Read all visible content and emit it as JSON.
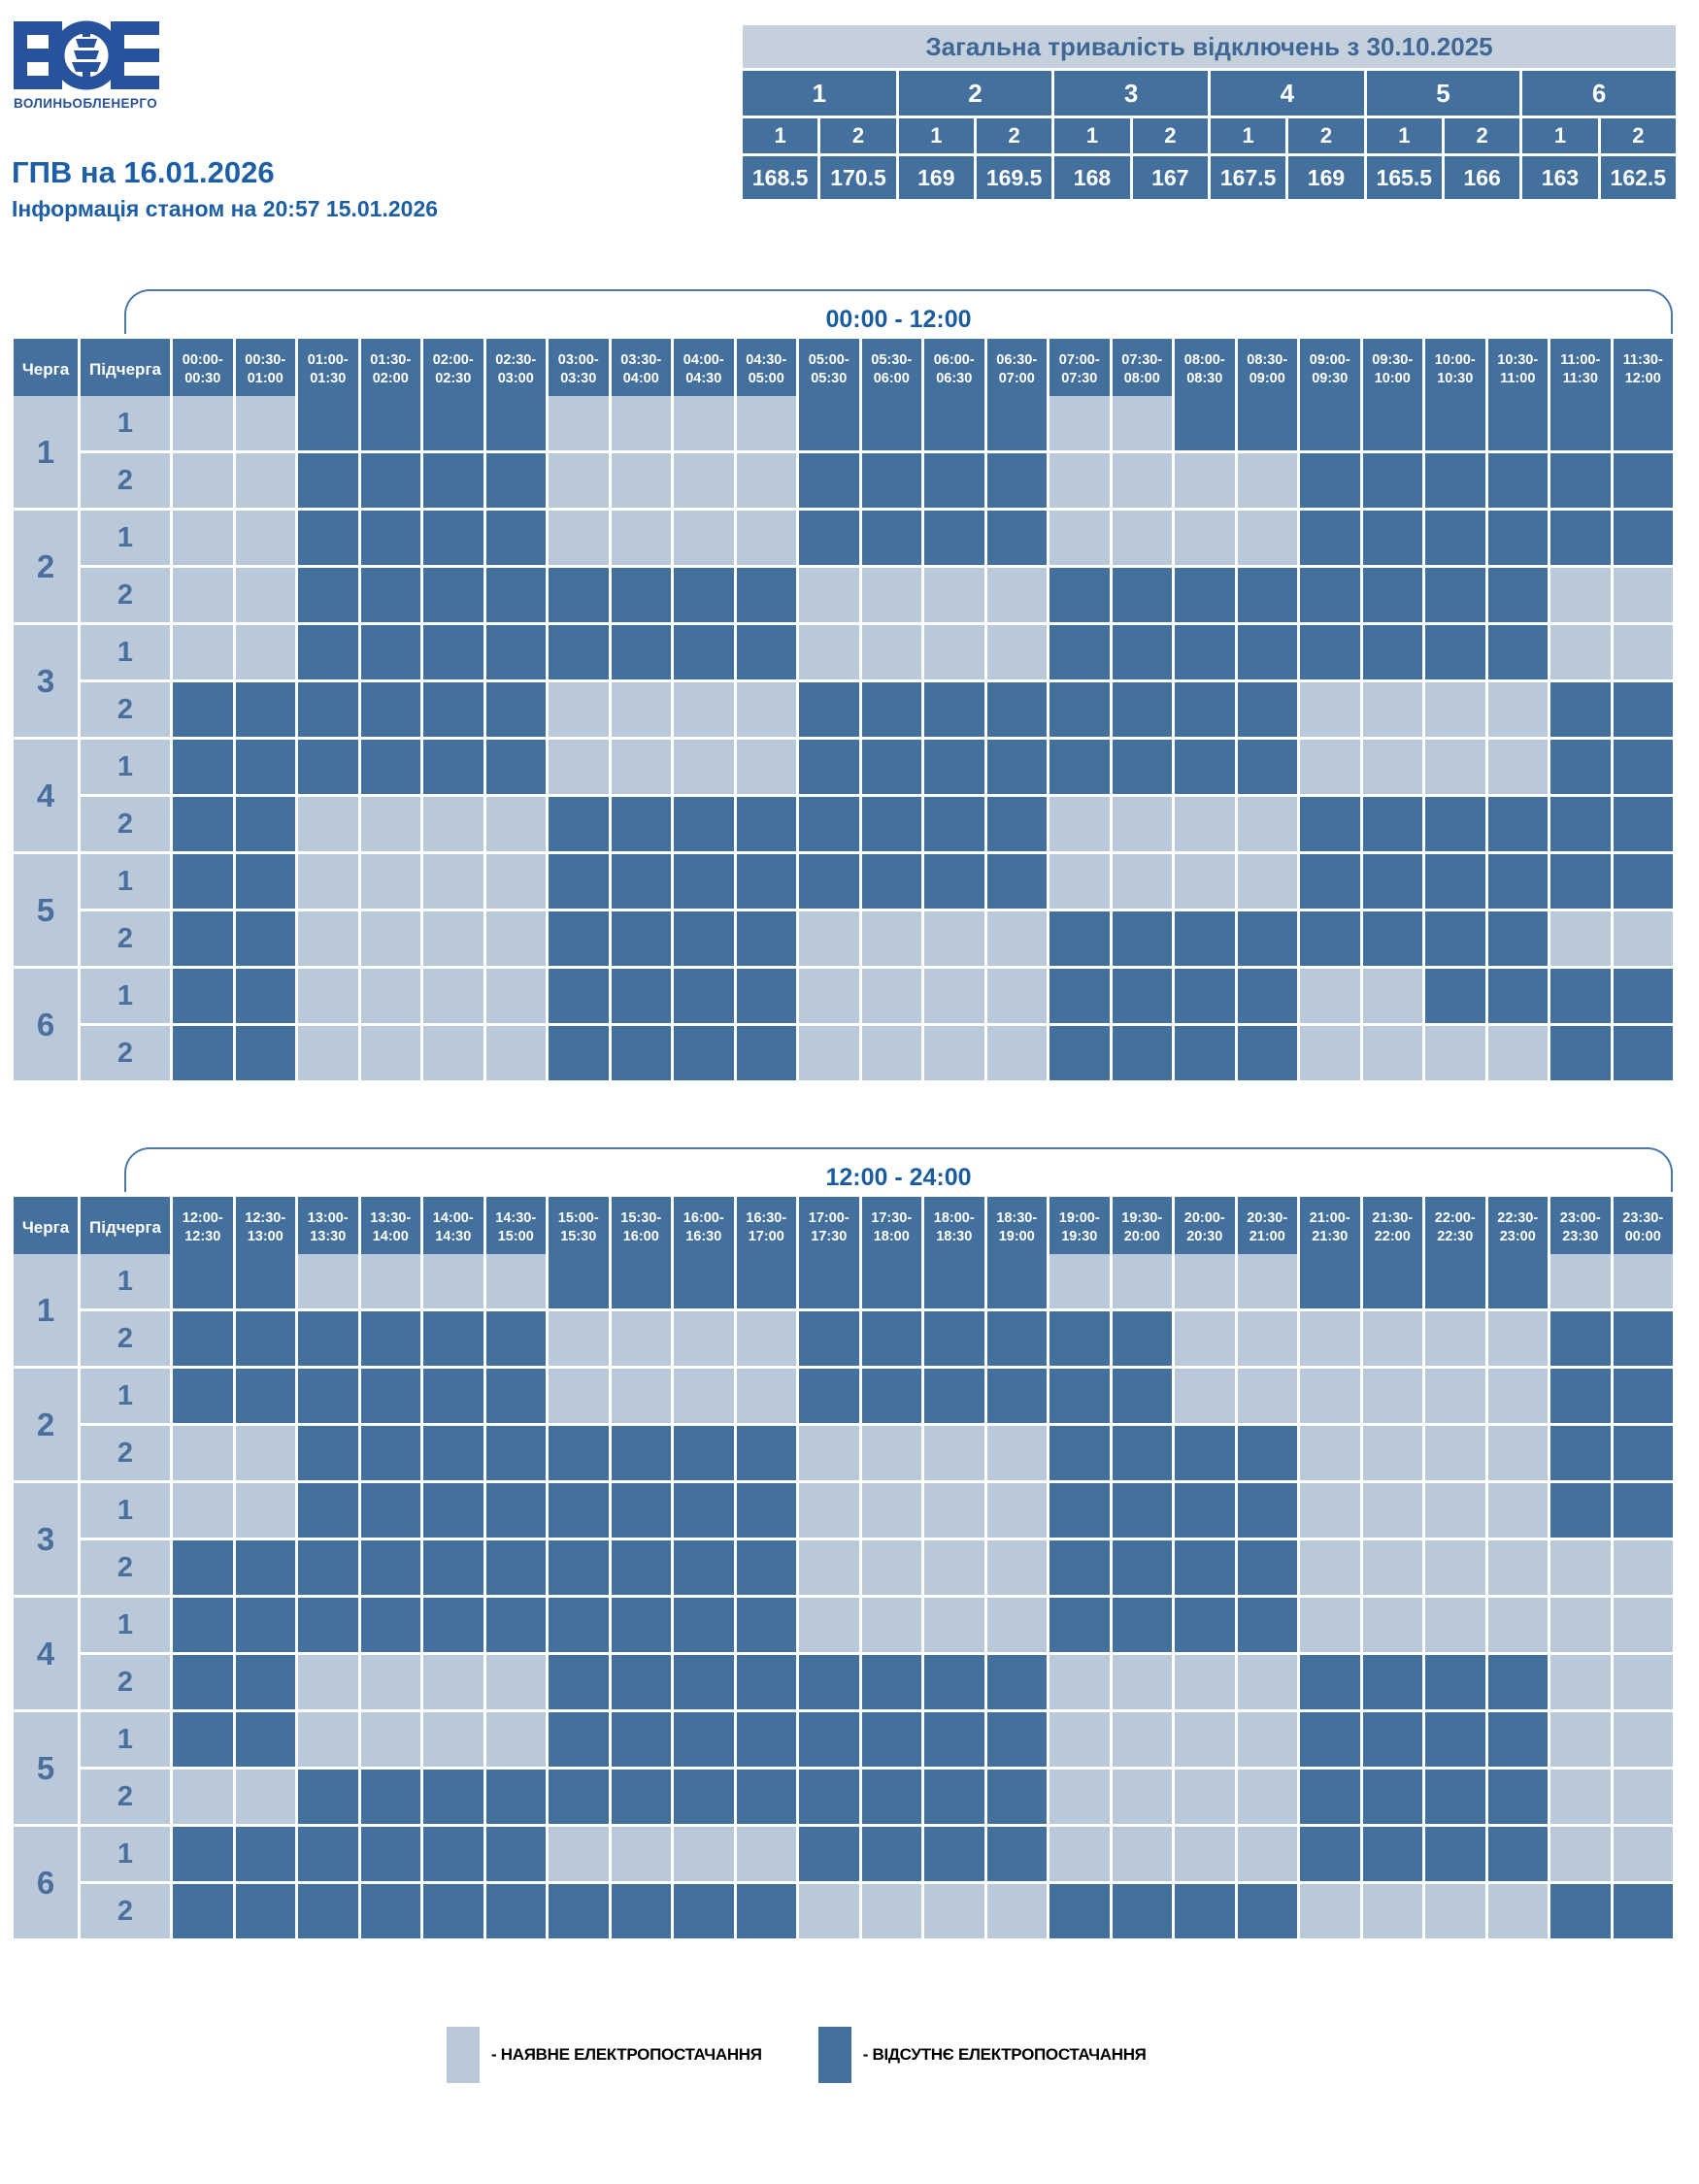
{
  "brand": {
    "company": "ВОЛИНЬОБЛЕНЕРГО",
    "title": "ГПВ на 16.01.2026",
    "subtitle": "Інформація станом на 20:57 15.01.2026"
  },
  "summary": {
    "title": "Загальна тривалість відключень з 30.10.2025",
    "groups": [
      {
        "label": "1",
        "subs": [
          {
            "label": "1",
            "value": "168.5"
          },
          {
            "label": "2",
            "value": "170.5"
          }
        ]
      },
      {
        "label": "2",
        "subs": [
          {
            "label": "1",
            "value": "169"
          },
          {
            "label": "2",
            "value": "169.5"
          }
        ]
      },
      {
        "label": "3",
        "subs": [
          {
            "label": "1",
            "value": "168"
          },
          {
            "label": "2",
            "value": "167"
          }
        ]
      },
      {
        "label": "4",
        "subs": [
          {
            "label": "1",
            "value": "167.5"
          },
          {
            "label": "2",
            "value": "169"
          }
        ]
      },
      {
        "label": "5",
        "subs": [
          {
            "label": "1",
            "value": "165.5"
          },
          {
            "label": "2",
            "value": "166"
          }
        ]
      },
      {
        "label": "6",
        "subs": [
          {
            "label": "1",
            "value": "163"
          },
          {
            "label": "2",
            "value": "162.5"
          }
        ]
      }
    ]
  },
  "schedule": {
    "queue_header": "Черга",
    "subqueue_header": "Підчерга",
    "cell_values_legend": "0 = power available (light), 1 = outage (dark)",
    "tables": [
      {
        "title": "00:00 - 12:00",
        "time_labels": [
          "00:00-00:30",
          "00:30-01:00",
          "01:00-01:30",
          "01:30-02:00",
          "02:00-02:30",
          "02:30-03:00",
          "03:00-03:30",
          "03:30-04:00",
          "04:00-04:30",
          "04:30-05:00",
          "05:00-05:30",
          "05:30-06:00",
          "06:00-06:30",
          "06:30-07:00",
          "07:00-07:30",
          "07:30-08:00",
          "08:00-08:30",
          "08:30-09:00",
          "09:00-09:30",
          "09:30-10:00",
          "10:00-10:30",
          "10:30-11:00",
          "11:00-11:30",
          "11:30-12:00"
        ],
        "queues": [
          {
            "label": "1",
            "rows": [
              {
                "label": "1",
                "cells": [
                  0,
                  0,
                  1,
                  1,
                  1,
                  1,
                  0,
                  0,
                  0,
                  0,
                  1,
                  1,
                  1,
                  1,
                  0,
                  0,
                  1,
                  1,
                  1,
                  1,
                  1,
                  1,
                  1,
                  1
                ]
              },
              {
                "label": "2",
                "cells": [
                  0,
                  0,
                  1,
                  1,
                  1,
                  1,
                  0,
                  0,
                  0,
                  0,
                  1,
                  1,
                  1,
                  1,
                  0,
                  0,
                  0,
                  0,
                  1,
                  1,
                  1,
                  1,
                  1,
                  1
                ]
              }
            ]
          },
          {
            "label": "2",
            "rows": [
              {
                "label": "1",
                "cells": [
                  0,
                  0,
                  1,
                  1,
                  1,
                  1,
                  0,
                  0,
                  0,
                  0,
                  1,
                  1,
                  1,
                  1,
                  0,
                  0,
                  0,
                  0,
                  1,
                  1,
                  1,
                  1,
                  1,
                  1
                ]
              },
              {
                "label": "2",
                "cells": [
                  0,
                  0,
                  1,
                  1,
                  1,
                  1,
                  1,
                  1,
                  1,
                  1,
                  0,
                  0,
                  0,
                  0,
                  1,
                  1,
                  1,
                  1,
                  1,
                  1,
                  1,
                  1,
                  0,
                  0
                ]
              }
            ]
          },
          {
            "label": "3",
            "rows": [
              {
                "label": "1",
                "cells": [
                  0,
                  0,
                  1,
                  1,
                  1,
                  1,
                  1,
                  1,
                  1,
                  1,
                  0,
                  0,
                  0,
                  0,
                  1,
                  1,
                  1,
                  1,
                  1,
                  1,
                  1,
                  1,
                  0,
                  0
                ]
              },
              {
                "label": "2",
                "cells": [
                  1,
                  1,
                  1,
                  1,
                  1,
                  1,
                  0,
                  0,
                  0,
                  0,
                  1,
                  1,
                  1,
                  1,
                  1,
                  1,
                  1,
                  1,
                  0,
                  0,
                  0,
                  0,
                  1,
                  1
                ]
              }
            ]
          },
          {
            "label": "4",
            "rows": [
              {
                "label": "1",
                "cells": [
                  1,
                  1,
                  1,
                  1,
                  1,
                  1,
                  0,
                  0,
                  0,
                  0,
                  1,
                  1,
                  1,
                  1,
                  1,
                  1,
                  1,
                  1,
                  0,
                  0,
                  0,
                  0,
                  1,
                  1
                ]
              },
              {
                "label": "2",
                "cells": [
                  1,
                  1,
                  0,
                  0,
                  0,
                  0,
                  1,
                  1,
                  1,
                  1,
                  1,
                  1,
                  1,
                  1,
                  0,
                  0,
                  0,
                  0,
                  1,
                  1,
                  1,
                  1,
                  1,
                  1
                ]
              }
            ]
          },
          {
            "label": "5",
            "rows": [
              {
                "label": "1",
                "cells": [
                  1,
                  1,
                  0,
                  0,
                  0,
                  0,
                  1,
                  1,
                  1,
                  1,
                  1,
                  1,
                  1,
                  1,
                  0,
                  0,
                  0,
                  0,
                  1,
                  1,
                  1,
                  1,
                  1,
                  1
                ]
              },
              {
                "label": "2",
                "cells": [
                  1,
                  1,
                  0,
                  0,
                  0,
                  0,
                  1,
                  1,
                  1,
                  1,
                  0,
                  0,
                  0,
                  0,
                  1,
                  1,
                  1,
                  1,
                  1,
                  1,
                  1,
                  1,
                  0,
                  0
                ]
              }
            ]
          },
          {
            "label": "6",
            "rows": [
              {
                "label": "1",
                "cells": [
                  1,
                  1,
                  0,
                  0,
                  0,
                  0,
                  1,
                  1,
                  1,
                  1,
                  0,
                  0,
                  0,
                  0,
                  1,
                  1,
                  1,
                  1,
                  0,
                  0,
                  1,
                  1,
                  1,
                  1
                ]
              },
              {
                "label": "2",
                "cells": [
                  1,
                  1,
                  0,
                  0,
                  0,
                  0,
                  1,
                  1,
                  1,
                  1,
                  0,
                  0,
                  0,
                  0,
                  1,
                  1,
                  1,
                  1,
                  0,
                  0,
                  0,
                  0,
                  1,
                  1
                ]
              }
            ]
          }
        ]
      },
      {
        "title": "12:00 - 24:00",
        "time_labels": [
          "12:00-12:30",
          "12:30-13:00",
          "13:00-13:30",
          "13:30-14:00",
          "14:00-14:30",
          "14:30-15:00",
          "15:00-15:30",
          "15:30-16:00",
          "16:00-16:30",
          "16:30-17:00",
          "17:00-17:30",
          "17:30-18:00",
          "18:00-18:30",
          "18:30-19:00",
          "19:00-19:30",
          "19:30-20:00",
          "20:00-20:30",
          "20:30-21:00",
          "21:00-21:30",
          "21:30-22:00",
          "22:00-22:30",
          "22:30-23:00",
          "23:00-23:30",
          "23:30-00:00"
        ],
        "queues": [
          {
            "label": "1",
            "rows": [
              {
                "label": "1",
                "cells": [
                  1,
                  1,
                  0,
                  0,
                  0,
                  0,
                  1,
                  1,
                  1,
                  1,
                  1,
                  1,
                  1,
                  1,
                  0,
                  0,
                  0,
                  0,
                  1,
                  1,
                  1,
                  1,
                  0,
                  0
                ]
              },
              {
                "label": "2",
                "cells": [
                  1,
                  1,
                  1,
                  1,
                  1,
                  1,
                  0,
                  0,
                  0,
                  0,
                  1,
                  1,
                  1,
                  1,
                  1,
                  1,
                  0,
                  0,
                  0,
                  0,
                  0,
                  0,
                  1,
                  1
                ]
              }
            ]
          },
          {
            "label": "2",
            "rows": [
              {
                "label": "1",
                "cells": [
                  1,
                  1,
                  1,
                  1,
                  1,
                  1,
                  0,
                  0,
                  0,
                  0,
                  1,
                  1,
                  1,
                  1,
                  1,
                  1,
                  0,
                  0,
                  0,
                  0,
                  0,
                  0,
                  1,
                  1
                ]
              },
              {
                "label": "2",
                "cells": [
                  0,
                  0,
                  1,
                  1,
                  1,
                  1,
                  1,
                  1,
                  1,
                  1,
                  0,
                  0,
                  0,
                  0,
                  1,
                  1,
                  1,
                  1,
                  0,
                  0,
                  0,
                  0,
                  1,
                  1
                ]
              }
            ]
          },
          {
            "label": "3",
            "rows": [
              {
                "label": "1",
                "cells": [
                  0,
                  0,
                  1,
                  1,
                  1,
                  1,
                  1,
                  1,
                  1,
                  1,
                  0,
                  0,
                  0,
                  0,
                  1,
                  1,
                  1,
                  1,
                  0,
                  0,
                  0,
                  0,
                  1,
                  1
                ]
              },
              {
                "label": "2",
                "cells": [
                  1,
                  1,
                  1,
                  1,
                  1,
                  1,
                  1,
                  1,
                  1,
                  1,
                  0,
                  0,
                  0,
                  0,
                  1,
                  1,
                  1,
                  1,
                  0,
                  0,
                  0,
                  0,
                  0,
                  0
                ]
              }
            ]
          },
          {
            "label": "4",
            "rows": [
              {
                "label": "1",
                "cells": [
                  1,
                  1,
                  1,
                  1,
                  1,
                  1,
                  1,
                  1,
                  1,
                  1,
                  0,
                  0,
                  0,
                  0,
                  1,
                  1,
                  1,
                  1,
                  0,
                  0,
                  0,
                  0,
                  0,
                  0
                ]
              },
              {
                "label": "2",
                "cells": [
                  1,
                  1,
                  0,
                  0,
                  0,
                  0,
                  1,
                  1,
                  1,
                  1,
                  1,
                  1,
                  1,
                  1,
                  0,
                  0,
                  0,
                  0,
                  1,
                  1,
                  1,
                  1,
                  0,
                  0
                ]
              }
            ]
          },
          {
            "label": "5",
            "rows": [
              {
                "label": "1",
                "cells": [
                  1,
                  1,
                  0,
                  0,
                  0,
                  0,
                  1,
                  1,
                  1,
                  1,
                  1,
                  1,
                  1,
                  1,
                  0,
                  0,
                  0,
                  0,
                  1,
                  1,
                  1,
                  1,
                  0,
                  0
                ]
              },
              {
                "label": "2",
                "cells": [
                  0,
                  0,
                  1,
                  1,
                  1,
                  1,
                  1,
                  1,
                  1,
                  1,
                  1,
                  1,
                  1,
                  1,
                  0,
                  0,
                  0,
                  0,
                  1,
                  1,
                  1,
                  1,
                  0,
                  0
                ]
              }
            ]
          },
          {
            "label": "6",
            "rows": [
              {
                "label": "1",
                "cells": [
                  1,
                  1,
                  1,
                  1,
                  1,
                  1,
                  0,
                  0,
                  0,
                  0,
                  1,
                  1,
                  1,
                  1,
                  0,
                  0,
                  0,
                  0,
                  1,
                  1,
                  1,
                  1,
                  0,
                  0
                ]
              },
              {
                "label": "2",
                "cells": [
                  1,
                  1,
                  1,
                  1,
                  1,
                  1,
                  1,
                  1,
                  1,
                  1,
                  0,
                  0,
                  0,
                  0,
                  1,
                  1,
                  1,
                  1,
                  0,
                  0,
                  0,
                  0,
                  1,
                  1
                ]
              }
            ]
          }
        ]
      }
    ]
  },
  "legend": {
    "items": [
      {
        "label": "- НАЯВНЕ ЕЛЕКТРОПОСТАЧАННЯ",
        "color": "#BAC9D9"
      },
      {
        "label": "- ВІДСУТНЄ ЕЛЕКТРОПОСТАЧАННЯ",
        "color": "#44709D"
      }
    ]
  },
  "colors": {
    "power_on": "#BAC9D9",
    "power_off": "#44709D",
    "accent_blue": "#1D5FA6",
    "logo_blue": "#28529B",
    "summary_band": "#C5D0DD"
  }
}
